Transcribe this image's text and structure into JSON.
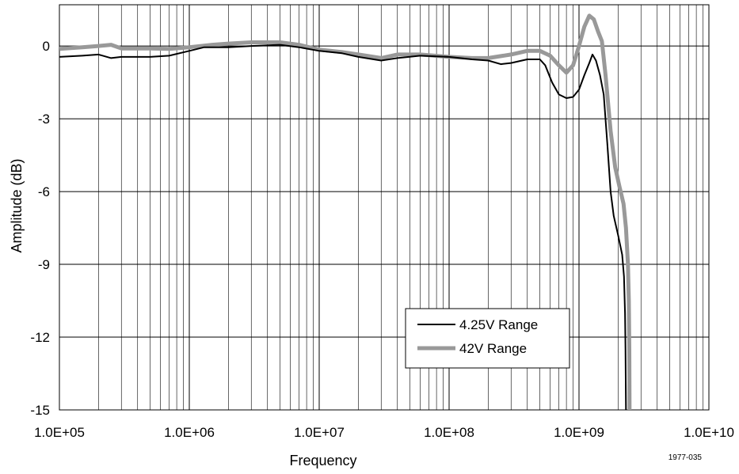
{
  "chart_data": {
    "type": "line",
    "xlabel": "Frequency",
    "ylabel": "Amplitude (dB)",
    "x_scale": "log",
    "xlim": [
      100000,
      10000000000
    ],
    "ylim": [
      -15,
      1.7
    ],
    "x_ticks": [
      {
        "value": 100000,
        "label": "1.0E+05"
      },
      {
        "value": 1000000,
        "label": "1.0E+06"
      },
      {
        "value": 10000000,
        "label": "1.0E+07"
      },
      {
        "value": 100000000,
        "label": "1.0E+08"
      },
      {
        "value": 1000000000,
        "label": "1.0E+09"
      },
      {
        "value": 10000000000,
        "label": "1.0E+10"
      }
    ],
    "y_ticks": [
      {
        "value": 0,
        "label": "0"
      },
      {
        "value": -3,
        "label": "-3"
      },
      {
        "value": -6,
        "label": "-6"
      },
      {
        "value": -9,
        "label": "-9"
      },
      {
        "value": -12,
        "label": "-12"
      },
      {
        "value": -15,
        "label": "-15"
      }
    ],
    "grid": true,
    "legend_position": "bottom-right",
    "figure_id": "1977-035",
    "series": [
      {
        "name": "4.25V Range",
        "color": "#000000",
        "points": [
          [
            100000,
            -0.45
          ],
          [
            150000,
            -0.4
          ],
          [
            200000,
            -0.35
          ],
          [
            250000,
            -0.5
          ],
          [
            300000,
            -0.45
          ],
          [
            500000,
            -0.45
          ],
          [
            700000,
            -0.4
          ],
          [
            1000000,
            -0.2
          ],
          [
            1300000,
            -0.05
          ],
          [
            2000000,
            -0.05
          ],
          [
            3000000,
            0.0
          ],
          [
            5000000,
            0.05
          ],
          [
            7000000,
            -0.05
          ],
          [
            10000000,
            -0.2
          ],
          [
            15000000,
            -0.3
          ],
          [
            20000000,
            -0.45
          ],
          [
            30000000,
            -0.6
          ],
          [
            40000000,
            -0.5
          ],
          [
            60000000,
            -0.4
          ],
          [
            100000000,
            -0.45
          ],
          [
            150000000,
            -0.55
          ],
          [
            200000000,
            -0.6
          ],
          [
            250000000,
            -0.75
          ],
          [
            300000000,
            -0.7
          ],
          [
            400000000,
            -0.55
          ],
          [
            500000000,
            -0.55
          ],
          [
            550000000,
            -0.8
          ],
          [
            620000000,
            -1.5
          ],
          [
            700000000,
            -2.0
          ],
          [
            800000000,
            -2.15
          ],
          [
            900000000,
            -2.1
          ],
          [
            1000000000,
            -1.8
          ],
          [
            1100000000,
            -1.2
          ],
          [
            1200000000,
            -0.7
          ],
          [
            1270000000,
            -0.35
          ],
          [
            1350000000,
            -0.6
          ],
          [
            1450000000,
            -1.2
          ],
          [
            1550000000,
            -2.0
          ],
          [
            1650000000,
            -4.0
          ],
          [
            1750000000,
            -6.0
          ],
          [
            1850000000,
            -7.0
          ],
          [
            2000000000,
            -7.8
          ],
          [
            2150000000,
            -8.6
          ],
          [
            2220000000,
            -9.5
          ],
          [
            2260000000,
            -11.0
          ],
          [
            2280000000,
            -12.5
          ],
          [
            2300000000,
            -15.0
          ]
        ]
      },
      {
        "name": "42V Range",
        "color": "#999999",
        "points": [
          [
            100000,
            -0.12
          ],
          [
            150000,
            -0.05
          ],
          [
            200000,
            0.0
          ],
          [
            250000,
            0.05
          ],
          [
            300000,
            -0.1
          ],
          [
            500000,
            -0.1
          ],
          [
            700000,
            -0.12
          ],
          [
            1000000,
            -0.05
          ],
          [
            1500000,
            0.05
          ],
          [
            2000000,
            0.1
          ],
          [
            3000000,
            0.15
          ],
          [
            5000000,
            0.15
          ],
          [
            7000000,
            0.05
          ],
          [
            10000000,
            -0.15
          ],
          [
            15000000,
            -0.25
          ],
          [
            20000000,
            -0.35
          ],
          [
            30000000,
            -0.5
          ],
          [
            40000000,
            -0.35
          ],
          [
            60000000,
            -0.35
          ],
          [
            100000000,
            -0.45
          ],
          [
            150000000,
            -0.5
          ],
          [
            200000000,
            -0.5
          ],
          [
            300000000,
            -0.35
          ],
          [
            400000000,
            -0.2
          ],
          [
            500000000,
            -0.2
          ],
          [
            600000000,
            -0.4
          ],
          [
            700000000,
            -0.8
          ],
          [
            800000000,
            -1.1
          ],
          [
            900000000,
            -0.8
          ],
          [
            1000000000,
            0.0
          ],
          [
            1100000000,
            0.8
          ],
          [
            1200000000,
            1.25
          ],
          [
            1300000000,
            1.1
          ],
          [
            1400000000,
            0.6
          ],
          [
            1500000000,
            0.2
          ],
          [
            1600000000,
            -1.2
          ],
          [
            1750000000,
            -3.5
          ],
          [
            1900000000,
            -5.0
          ],
          [
            2050000000,
            -5.8
          ],
          [
            2200000000,
            -6.5
          ],
          [
            2300000000,
            -7.5
          ],
          [
            2380000000,
            -9.0
          ],
          [
            2420000000,
            -10.5
          ],
          [
            2440000000,
            -12.5
          ],
          [
            2450000000,
            -15.0
          ]
        ]
      }
    ]
  }
}
